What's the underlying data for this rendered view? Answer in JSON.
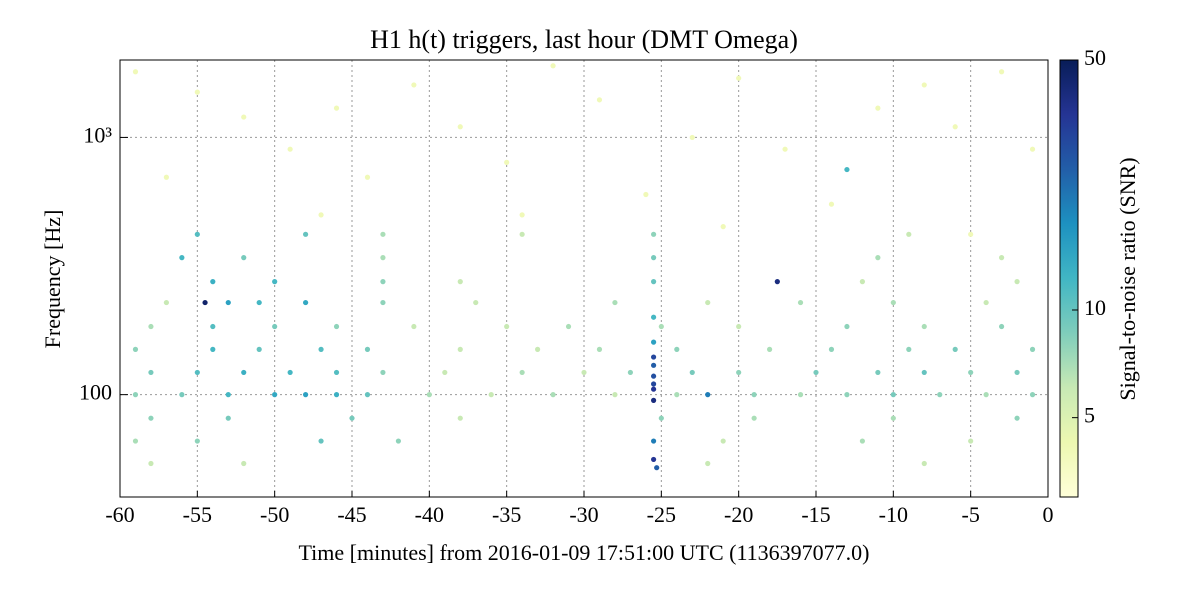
{
  "chart_data": {
    "type": "scatter",
    "title": "H1 h(t) triggers, last hour (DMT Omega)",
    "x_label": "Time [minutes] from 2016-01-09 17:51:00 UTC (1136397077.0)",
    "y_label": "Frequency [Hz]",
    "colorbar_label": "Signal-to-noise ratio (SNR)",
    "colormap": "YlGnBu",
    "y_scale": "log",
    "color_scale": "log",
    "grid": true,
    "xlim": [
      -60,
      0
    ],
    "xticks": [
      -60,
      -55,
      -50,
      -45,
      -40,
      -35,
      -30,
      -25,
      -20,
      -15,
      -10,
      -5,
      0
    ],
    "ylim": [
      40,
      2000
    ],
    "yticks": [
      100,
      {
        "value": 1000,
        "label": "10³"
      }
    ],
    "clim": [
      3,
      50
    ],
    "cticks": [
      5,
      10,
      50
    ],
    "x": [
      -59,
      -56,
      -53,
      -50,
      -48,
      -46,
      -44,
      -40,
      -36,
      -32,
      -28,
      -24,
      -22,
      -19,
      -16,
      -13,
      -10,
      -7,
      -4,
      -1,
      -58,
      -55,
      -52,
      -49,
      -46,
      -43,
      -39,
      -34,
      -30,
      -27,
      -23,
      -20,
      -15,
      -11,
      -8,
      -5,
      -2,
      -59,
      -54,
      -51,
      -47,
      -44,
      -38,
      -33,
      -29,
      -24,
      -18,
      -14,
      -9,
      -6,
      -1,
      -58,
      -54,
      -50,
      -46,
      -41,
      -35,
      -31,
      -25,
      -20,
      -13,
      -8,
      -3,
      -57,
      -54.5,
      -53,
      -51,
      -48,
      -43,
      -37,
      -28,
      -22,
      -16,
      -10,
      -4,
      -54,
      -50,
      -43,
      -38,
      -25.5,
      -17.5,
      -12,
      -2,
      -56,
      -52,
      -43,
      -25.5,
      -11,
      -3,
      -55,
      -48,
      -43,
      -34,
      -25.5,
      -9,
      -58,
      -53,
      -45,
      -38,
      -25,
      -19,
      -10,
      -2,
      -59,
      -55,
      -47,
      -42,
      -25.5,
      -21,
      -12,
      -5,
      -58,
      -52,
      -25.5,
      -25.3,
      -22,
      -8,
      -25.5,
      -25.5,
      -25.5,
      -25.5,
      -25.5,
      -25.5,
      -25.5,
      -25.5,
      -59,
      -55,
      -52,
      -49,
      -46,
      -44,
      -41,
      -38,
      -35,
      -32,
      -29,
      -26,
      -23,
      -20,
      -17,
      -13,
      -11,
      -8,
      -6,
      -3,
      -1,
      -57,
      -47,
      -34,
      -14,
      -21,
      -5
    ],
    "y": [
      100,
      100,
      100,
      100,
      100,
      100,
      100,
      100,
      100,
      100,
      100,
      100,
      100,
      100,
      100,
      100,
      100,
      100,
      100,
      100,
      122,
      122,
      122,
      122,
      122,
      122,
      122,
      122,
      122,
      122,
      122,
      122,
      122,
      122,
      122,
      122,
      122,
      150,
      150,
      150,
      150,
      150,
      150,
      150,
      150,
      150,
      150,
      150,
      150,
      150,
      150,
      184,
      184,
      184,
      184,
      184,
      184,
      184,
      184,
      184,
      184,
      184,
      184,
      228,
      228,
      228,
      228,
      228,
      228,
      228,
      228,
      228,
      228,
      228,
      228,
      275,
      275,
      275,
      275,
      275,
      275,
      275,
      275,
      341,
      341,
      341,
      341,
      341,
      341,
      420,
      420,
      420,
      420,
      420,
      420,
      81,
      81,
      81,
      81,
      81,
      81,
      81,
      81,
      66,
      66,
      66,
      66,
      66,
      66,
      66,
      66,
      54,
      54,
      56,
      52,
      54,
      54,
      95,
      105,
      110,
      118,
      130,
      140,
      160,
      200,
      1800,
      1500,
      1200,
      900,
      1300,
      700,
      1600,
      1100,
      800,
      1900,
      1400,
      600,
      1000,
      1700,
      900,
      750,
      1300,
      1600,
      1100,
      1800,
      900,
      700,
      500,
      500,
      550,
      450,
      420
    ],
    "snr": [
      8,
      9,
      12,
      14,
      15,
      13,
      10,
      7,
      6,
      7,
      6,
      7,
      20,
      8,
      7,
      8,
      9,
      8,
      7,
      8,
      9,
      11,
      13,
      12,
      11,
      8,
      6,
      7,
      6,
      8,
      9,
      8,
      9,
      9,
      10,
      8,
      9,
      8,
      12,
      10,
      11,
      9,
      6,
      6,
      7,
      8,
      7,
      8,
      8,
      9,
      8,
      7,
      11,
      9,
      8,
      6,
      6,
      7,
      7,
      6,
      8,
      7,
      8,
      6,
      45,
      15,
      12,
      14,
      8,
      6,
      7,
      6,
      7,
      7,
      6,
      13,
      12,
      8,
      6,
      10,
      40,
      6,
      6,
      12,
      9,
      7,
      9,
      7,
      6,
      11,
      10,
      7,
      6,
      8,
      6,
      8,
      9,
      9,
      6,
      8,
      7,
      7,
      8,
      7,
      8,
      10,
      8,
      20,
      6,
      7,
      6,
      6,
      6,
      35,
      25,
      6,
      6,
      40,
      35,
      30,
      28,
      25,
      30,
      15,
      12,
      4,
      4,
      4,
      4,
      4,
      4,
      4,
      4,
      4,
      4,
      4,
      4,
      4,
      4,
      4,
      12,
      4,
      4,
      4,
      4,
      4,
      4,
      4,
      4,
      4,
      4,
      4
    ]
  }
}
